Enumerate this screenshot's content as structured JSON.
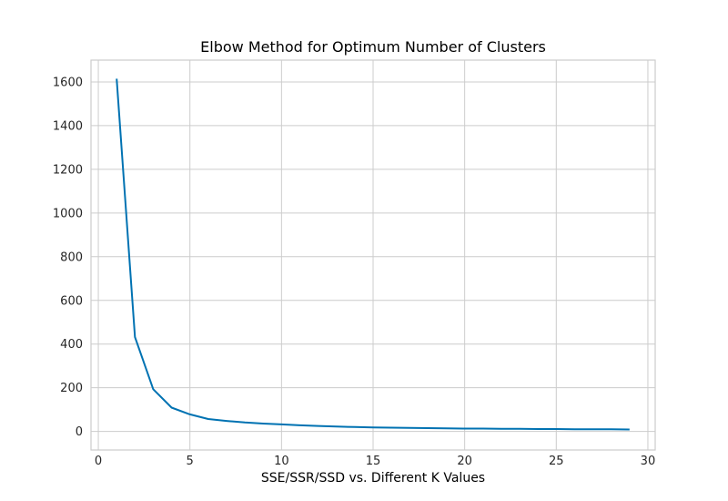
{
  "chart_data": {
    "type": "line",
    "title": "Elbow Method for Optimum Number of Clusters",
    "xlabel": "SSE/SSR/SSD vs. Different K Values",
    "ylabel": "",
    "xlim": [
      -0.4,
      30.4
    ],
    "ylim": [
      -85,
      1700
    ],
    "xticks": [
      0,
      5,
      10,
      15,
      20,
      25,
      30
    ],
    "yticks": [
      0,
      200,
      400,
      600,
      800,
      1000,
      1200,
      1400,
      1600
    ],
    "grid": true,
    "series": [
      {
        "color": "#0072b2",
        "x": [
          1,
          2,
          3,
          4,
          5,
          6,
          7,
          8,
          9,
          10,
          11,
          12,
          13,
          14,
          15,
          16,
          17,
          18,
          19,
          20,
          21,
          22,
          23,
          24,
          25,
          26,
          27,
          28,
          29
        ],
        "y": [
          1615,
          432,
          193,
          109,
          78,
          57,
          48,
          41,
          36,
          32,
          28,
          25,
          22,
          20,
          18,
          17,
          16,
          15,
          14,
          13,
          13,
          12,
          12,
          11,
          11,
          10,
          10,
          10,
          9
        ]
      }
    ]
  }
}
